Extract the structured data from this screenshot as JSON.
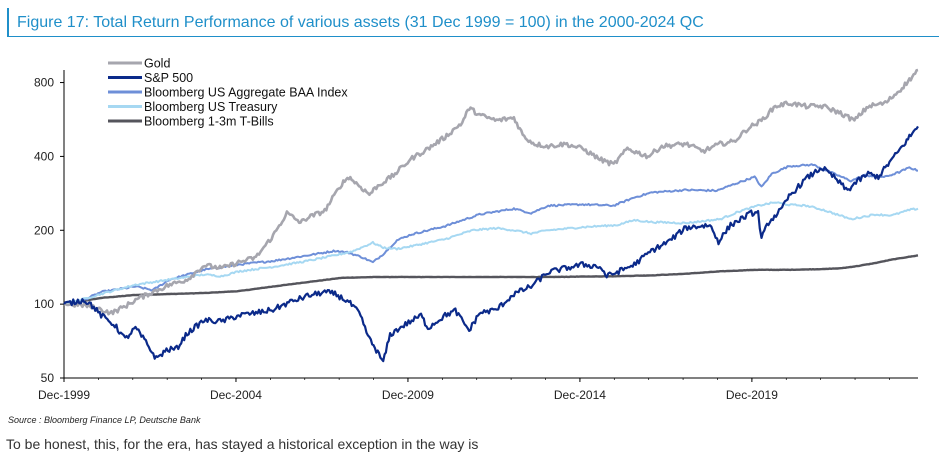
{
  "title": "Figure 17: Total Return Performance of various assets (31 Dec 1999 = 100) in the 2000-2024 QC",
  "source": "Source : Bloomberg Finance LP, Deutsche Bank",
  "footer": "To be honest, this, for the era, has stayed a historical exception in the way is",
  "chart_data": {
    "type": "line",
    "title": "",
    "xlabel": "",
    "ylabel": "",
    "y_scale": "log",
    "ylim": [
      50,
      900
    ],
    "xlim": [
      1999.92,
      2024.75
    ],
    "y_ticks": [
      50,
      100,
      200,
      400,
      800
    ],
    "x_ticks": [
      {
        "x": 1999.92,
        "label": "Dec-1999"
      },
      {
        "x": 2004.92,
        "label": "Dec-2004"
      },
      {
        "x": 2009.92,
        "label": "Dec-2009"
      },
      {
        "x": 2014.92,
        "label": "Dec-2014"
      },
      {
        "x": 2019.92,
        "label": "Dec-2019"
      }
    ],
    "legend_position": "top-left",
    "grid": false,
    "series": [
      {
        "name": "Gold",
        "color": "#a6a6ae",
        "width": 2.6,
        "x": [
          1999.92,
          2000.5,
          2001.0,
          2001.3,
          2001.7,
          2002.0,
          2002.5,
          2003.0,
          2003.5,
          2004.0,
          2004.5,
          2005.0,
          2005.5,
          2006.0,
          2006.4,
          2006.8,
          2007.0,
          2007.5,
          2008.0,
          2008.2,
          2008.8,
          2009.0,
          2009.5,
          2010.0,
          2010.5,
          2011.0,
          2011.5,
          2011.7,
          2012.0,
          2012.5,
          2013.0,
          2013.3,
          2013.6,
          2014.0,
          2014.5,
          2015.0,
          2015.5,
          2015.9,
          2016.3,
          2016.9,
          2017.3,
          2018.0,
          2018.5,
          2019.0,
          2019.4,
          2019.8,
          2020.2,
          2020.6,
          2021.0,
          2021.5,
          2022.0,
          2022.5,
          2022.9,
          2023.3,
          2023.8,
          2024.2,
          2024.5,
          2024.75
        ],
        "y": [
          100,
          99,
          95,
          92,
          98,
          104,
          112,
          120,
          126,
          144,
          140,
          148,
          155,
          190,
          235,
          215,
          225,
          240,
          310,
          330,
          280,
          300,
          335,
          390,
          430,
          480,
          550,
          630,
          590,
          560,
          575,
          480,
          450,
          440,
          450,
          430,
          390,
          370,
          430,
          400,
          440,
          450,
          420,
          450,
          460,
          520,
          560,
          640,
          660,
          640,
          640,
          600,
          560,
          640,
          660,
          740,
          820,
          900
        ]
      },
      {
        "name": "S&P 500",
        "color": "#0b2a8a",
        "width": 2.2,
        "x": [
          1999.92,
          2000.5,
          2000.7,
          2001.0,
          2001.4,
          2001.7,
          2002.0,
          2002.3,
          2002.6,
          2002.9,
          2003.2,
          2003.5,
          2004.0,
          2004.5,
          2005.0,
          2005.5,
          2006.0,
          2006.5,
          2007.0,
          2007.5,
          2007.8,
          2008.2,
          2008.5,
          2008.8,
          2009.0,
          2009.2,
          2009.4,
          2009.8,
          2010.3,
          2010.5,
          2011.0,
          2011.3,
          2011.7,
          2012.0,
          2012.5,
          2013.0,
          2013.5,
          2014.0,
          2014.5,
          2015.0,
          2015.5,
          2015.7,
          2016.0,
          2016.5,
          2017.0,
          2017.5,
          2018.0,
          2018.7,
          2018.95,
          2019.3,
          2019.9,
          2020.1,
          2020.2,
          2020.4,
          2020.8,
          2021.0,
          2021.5,
          2021.95,
          2022.3,
          2022.7,
          2022.9,
          2023.3,
          2023.6,
          2023.8,
          2024.0,
          2024.3,
          2024.5,
          2024.75
        ],
        "y": [
          100,
          104,
          100,
          90,
          82,
          72,
          80,
          70,
          60,
          65,
          66,
          76,
          86,
          85,
          90,
          92,
          95,
          102,
          108,
          112,
          110,
          102,
          92,
          72,
          65,
          58,
          75,
          82,
          90,
          80,
          90,
          94,
          78,
          92,
          95,
          110,
          118,
          135,
          140,
          145,
          142,
          130,
          135,
          145,
          165,
          180,
          205,
          210,
          180,
          210,
          235,
          235,
          185,
          215,
          245,
          275,
          325,
          360,
          330,
          290,
          310,
          340,
          330,
          360,
          390,
          440,
          480,
          530
        ]
      },
      {
        "name": "Bloomberg US Aggregate BAA Index",
        "color": "#6e8fd8",
        "width": 2.0,
        "x": [
          1999.92,
          2000.5,
          2001.0,
          2002.0,
          2002.5,
          2003.0,
          2004.0,
          2005.0,
          2006.0,
          2007.0,
          2007.8,
          2008.2,
          2008.6,
          2008.9,
          2009.2,
          2009.6,
          2010.0,
          2011.0,
          2012.0,
          2013.0,
          2013.5,
          2014.0,
          2015.0,
          2015.9,
          2016.5,
          2017.0,
          2018.0,
          2018.9,
          2019.5,
          2020.0,
          2020.2,
          2020.5,
          2021.0,
          2021.7,
          2022.2,
          2022.8,
          2023.2,
          2023.8,
          2024.2,
          2024.5,
          2024.75
        ],
        "y": [
          100,
          104,
          112,
          118,
          114,
          126,
          138,
          145,
          150,
          158,
          165,
          162,
          155,
          148,
          160,
          182,
          192,
          208,
          232,
          245,
          235,
          252,
          255,
          252,
          272,
          285,
          292,
          290,
          312,
          330,
          300,
          340,
          365,
          370,
          345,
          318,
          335,
          330,
          345,
          360,
          350
        ]
      },
      {
        "name": "Bloomberg US Treasury",
        "color": "#a6d8f2",
        "width": 2.0,
        "x": [
          1999.92,
          2000.5,
          2001.0,
          2002.0,
          2003.0,
          2004.0,
          2004.5,
          2005.0,
          2006.0,
          2007.0,
          2007.8,
          2008.3,
          2008.9,
          2009.2,
          2009.6,
          2010.0,
          2011.0,
          2011.8,
          2012.5,
          2013.0,
          2013.5,
          2014.0,
          2015.0,
          2016.0,
          2016.5,
          2017.0,
          2018.0,
          2019.0,
          2019.6,
          2020.1,
          2020.6,
          2021.0,
          2021.5,
          2022.0,
          2022.8,
          2023.5,
          2024.0,
          2024.5,
          2024.75
        ],
        "y": [
          100,
          105,
          110,
          120,
          126,
          132,
          130,
          136,
          142,
          150,
          158,
          164,
          178,
          170,
          168,
          172,
          184,
          200,
          204,
          200,
          194,
          200,
          206,
          210,
          220,
          216,
          214,
          222,
          240,
          252,
          260,
          254,
          252,
          242,
          222,
          232,
          230,
          242,
          245
        ]
      },
      {
        "name": "Bloomberg 1-3m T-Bills",
        "color": "#55555c",
        "width": 2.4,
        "x": [
          1999.92,
          2001.0,
          2002.0,
          2003.0,
          2004.0,
          2005.0,
          2006.0,
          2007.0,
          2008.0,
          2009.0,
          2010.0,
          2012.0,
          2014.0,
          2016.0,
          2017.0,
          2018.0,
          2019.0,
          2020.0,
          2021.0,
          2022.0,
          2022.5,
          2023.0,
          2023.5,
          2024.0,
          2024.75
        ],
        "y": [
          100,
          106,
          109,
          110,
          111,
          113,
          118,
          123,
          128,
          129,
          129,
          129,
          129,
          130,
          131,
          133,
          136,
          138,
          138,
          139,
          140,
          143,
          147,
          152,
          158
        ]
      }
    ]
  }
}
